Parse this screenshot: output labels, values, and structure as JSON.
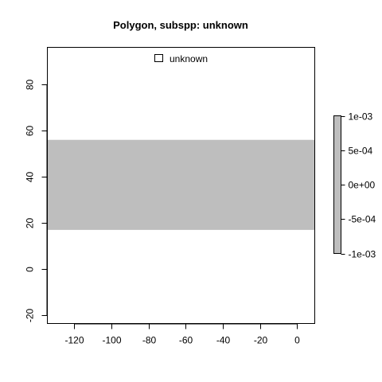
{
  "chart_data": {
    "type": "area",
    "title": "Polygon, subspp: unknown",
    "xlabel": "",
    "ylabel": "",
    "xlim": [
      -134.5,
      9.5
    ],
    "ylim": [
      -23.5,
      96
    ],
    "x_ticks": [
      -120,
      -100,
      -80,
      -60,
      -40,
      -20,
      0
    ],
    "y_ticks": [
      -20,
      0,
      20,
      40,
      60,
      80
    ],
    "x_tick_labels": [
      "-120",
      "-100",
      "-80",
      "-60",
      "-40",
      "-20",
      "0"
    ],
    "y_tick_labels": [
      "-20",
      "0",
      "20",
      "40",
      "60",
      "80"
    ],
    "grid": false,
    "series": [
      {
        "name": "unknown",
        "polygon": {
          "x": [
            -134.5,
            9.5,
            9.5,
            -134.5
          ],
          "y": [
            17,
            17,
            56,
            56
          ]
        },
        "fill": "#bebebe"
      }
    ],
    "legend": {
      "position": "top",
      "entries": [
        "unknown"
      ]
    },
    "colorbar": {
      "range": [
        -0.001,
        0.001
      ],
      "ticks": [
        0.001,
        0.0005,
        0,
        -0.0005,
        -0.001
      ],
      "tick_labels": [
        "1e-03",
        "5e-04",
        "0e+00",
        "-5e-04",
        "-1e-03"
      ],
      "fill": "#bebebe"
    }
  }
}
